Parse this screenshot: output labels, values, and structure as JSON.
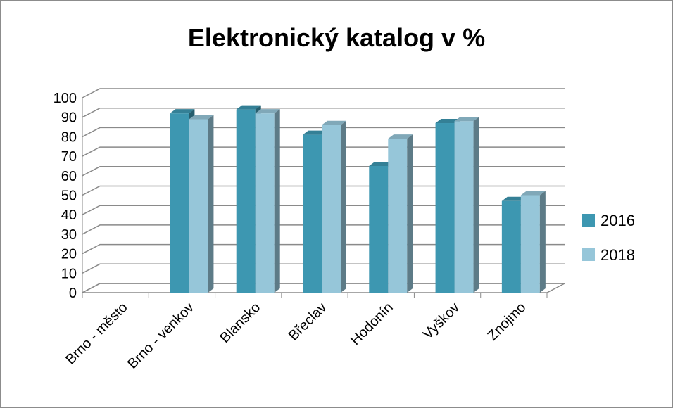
{
  "chart_data": {
    "type": "bar",
    "title": "Elektronický katalog v %",
    "categories": [
      "Brno - město",
      "Brno - venkov",
      "Blansko",
      "Břeclav",
      "Hodonín",
      "Vyškov",
      "Znojmo"
    ],
    "series": [
      {
        "name": "2016",
        "values": [
          null,
          92,
          94,
          81,
          65,
          87,
          47
        ],
        "color": "#3d97b1"
      },
      {
        "name": "2018",
        "values": [
          null,
          89,
          92,
          86,
          79,
          88,
          50
        ],
        "color": "#96c6d9"
      }
    ],
    "yticks": [
      "0",
      "10",
      "20",
      "30",
      "40",
      "50",
      "60",
      "70",
      "80",
      "90",
      "100"
    ],
    "ylim": [
      0,
      100
    ],
    "grid": true,
    "legend": "right"
  }
}
